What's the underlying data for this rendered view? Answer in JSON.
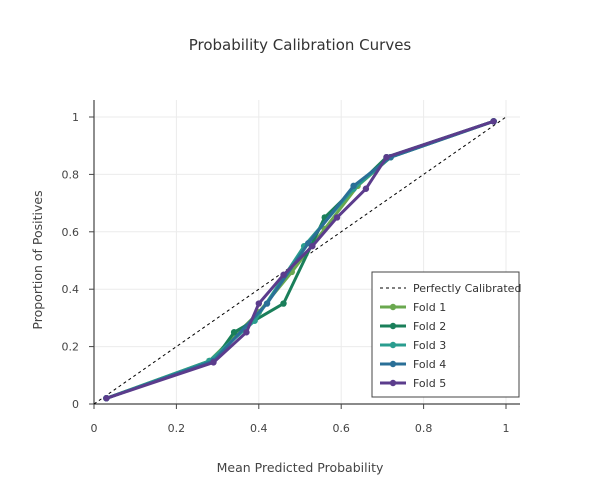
{
  "chart_data": {
    "type": "line",
    "title": "Probability Calibration Curves",
    "xlabel": "Mean Predicted Probability",
    "ylabel": "Proportion of Positives",
    "xlim": [
      0,
      1
    ],
    "ylim": [
      0,
      1
    ],
    "x_ticks": [
      "0",
      "0.2",
      "0.4",
      "0.6",
      "0.8",
      "1"
    ],
    "y_ticks": [
      "0",
      "0.2",
      "0.4",
      "0.6",
      "0.8",
      "1"
    ],
    "grid": true,
    "legend_position": "bottom-right",
    "reference_line": {
      "name": "Perfectly Calibrated",
      "style": "dashed",
      "color": "#000000",
      "x": [
        0,
        1
      ],
      "y": [
        0,
        1
      ]
    },
    "series": [
      {
        "name": "Fold 1",
        "color": "#6aa84f",
        "x": [
          0.03,
          0.28,
          0.4,
          0.48,
          0.56,
          0.64,
          0.72,
          0.97
        ],
        "y": [
          0.02,
          0.15,
          0.32,
          0.46,
          0.61,
          0.76,
          0.86,
          0.985
        ]
      },
      {
        "name": "Fold 2",
        "color": "#1a7f5a",
        "x": [
          0.03,
          0.29,
          0.34,
          0.46,
          0.56,
          0.71,
          0.97
        ],
        "y": [
          0.02,
          0.15,
          0.25,
          0.35,
          0.65,
          0.86,
          0.985
        ]
      },
      {
        "name": "Fold 3",
        "color": "#2a9d8f",
        "x": [
          0.03,
          0.28,
          0.39,
          0.51,
          0.63,
          0.72,
          0.97
        ],
        "y": [
          0.02,
          0.15,
          0.29,
          0.55,
          0.75,
          0.86,
          0.985
        ]
      },
      {
        "name": "Fold 4",
        "color": "#2a6f97",
        "x": [
          0.03,
          0.29,
          0.42,
          0.52,
          0.63,
          0.72,
          0.97
        ],
        "y": [
          0.02,
          0.15,
          0.35,
          0.56,
          0.76,
          0.86,
          0.985
        ]
      },
      {
        "name": "Fold 5",
        "color": "#5b3c8c",
        "x": [
          0.03,
          0.29,
          0.37,
          0.4,
          0.46,
          0.53,
          0.59,
          0.66,
          0.71,
          0.97
        ],
        "y": [
          0.02,
          0.145,
          0.25,
          0.35,
          0.45,
          0.55,
          0.65,
          0.75,
          0.86,
          0.985
        ]
      }
    ]
  }
}
